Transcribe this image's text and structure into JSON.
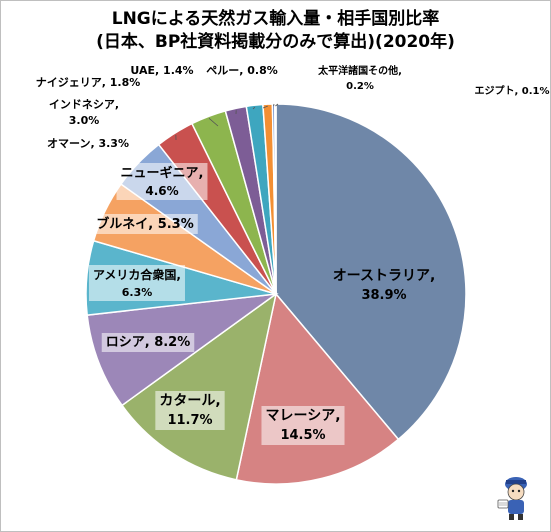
{
  "chart_data": {
    "type": "pie",
    "title_line1": "LNGによる天然ガス輸入量・相手国別比率",
    "title_line2": "(日本、BP社資料掲載分のみで算出)(2020年)",
    "slices": [
      {
        "name": "オーストラリア",
        "pct_label": "38.9%",
        "value": 38.9,
        "color": "#6f87a8"
      },
      {
        "name": "マレーシア",
        "pct_label": "14.5%",
        "value": 14.5,
        "color": "#d68383"
      },
      {
        "name": "カタール",
        "pct_label": "11.7%",
        "value": 11.7,
        "color": "#9ab26b"
      },
      {
        "name": "ロシア",
        "pct_label": "8.2%",
        "value": 8.2,
        "color": "#9c87b8"
      },
      {
        "name": "アメリカ合衆国",
        "pct_label": "6.3%",
        "value": 6.3,
        "color": "#5ab5cc"
      },
      {
        "name": "ブルネイ",
        "pct_label": "5.3%",
        "value": 5.3,
        "color": "#f5a262"
      },
      {
        "name": "ニューギニア",
        "pct_label": "4.6%",
        "value": 4.6,
        "color": "#8aa7d6"
      },
      {
        "name": "オマーン",
        "pct_label": "3.3%",
        "value": 3.3,
        "color": "#c9514f"
      },
      {
        "name": "インドネシア",
        "pct_label": "3.0%",
        "value": 3.0,
        "color": "#8db54e"
      },
      {
        "name": "ナイジェリア",
        "pct_label": "1.8%",
        "value": 1.8,
        "color": "#7d5d96"
      },
      {
        "name": "UAE",
        "pct_label": "1.4%",
        "value": 1.4,
        "color": "#3ea6bf"
      },
      {
        "name": "ペルー",
        "pct_label": "0.8%",
        "value": 0.8,
        "color": "#f38f33"
      },
      {
        "name": "太平洋諸国その他",
        "pct_label": "0.2%",
        "value": 0.2,
        "color": "#5b7bbf"
      },
      {
        "name": "エジプト",
        "pct_label": "0.1%",
        "value": 0.1,
        "color": "#c0504d"
      }
    ]
  }
}
